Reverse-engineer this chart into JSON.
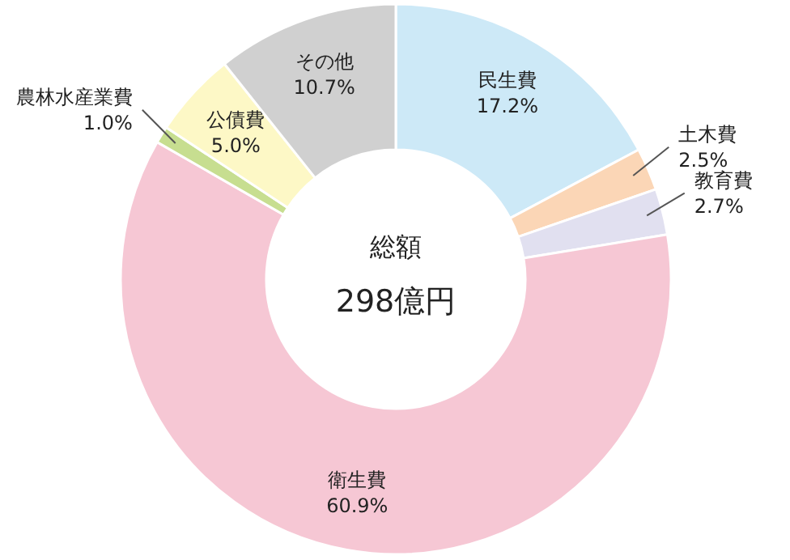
{
  "chart_data": {
    "type": "donut",
    "categories": [
      "民生費",
      "土木費",
      "教育費",
      "衛生費",
      "農林水産業費",
      "公債費",
      "その他"
    ],
    "values": [
      17.2,
      2.5,
      2.7,
      60.9,
      1.0,
      5.0,
      10.7
    ],
    "colors": [
      "#cde9f7",
      "#fbd6b6",
      "#e1e0f0",
      "#f6c7d4",
      "#c7de90",
      "#fdf8c6",
      "#d0d0d0"
    ],
    "value_labels": [
      "17.2%",
      "2.5%",
      "2.7%",
      "60.9%",
      "1.0%",
      "5.0%",
      "10.7%"
    ],
    "annotations": [
      "総額",
      "298億円"
    ]
  }
}
